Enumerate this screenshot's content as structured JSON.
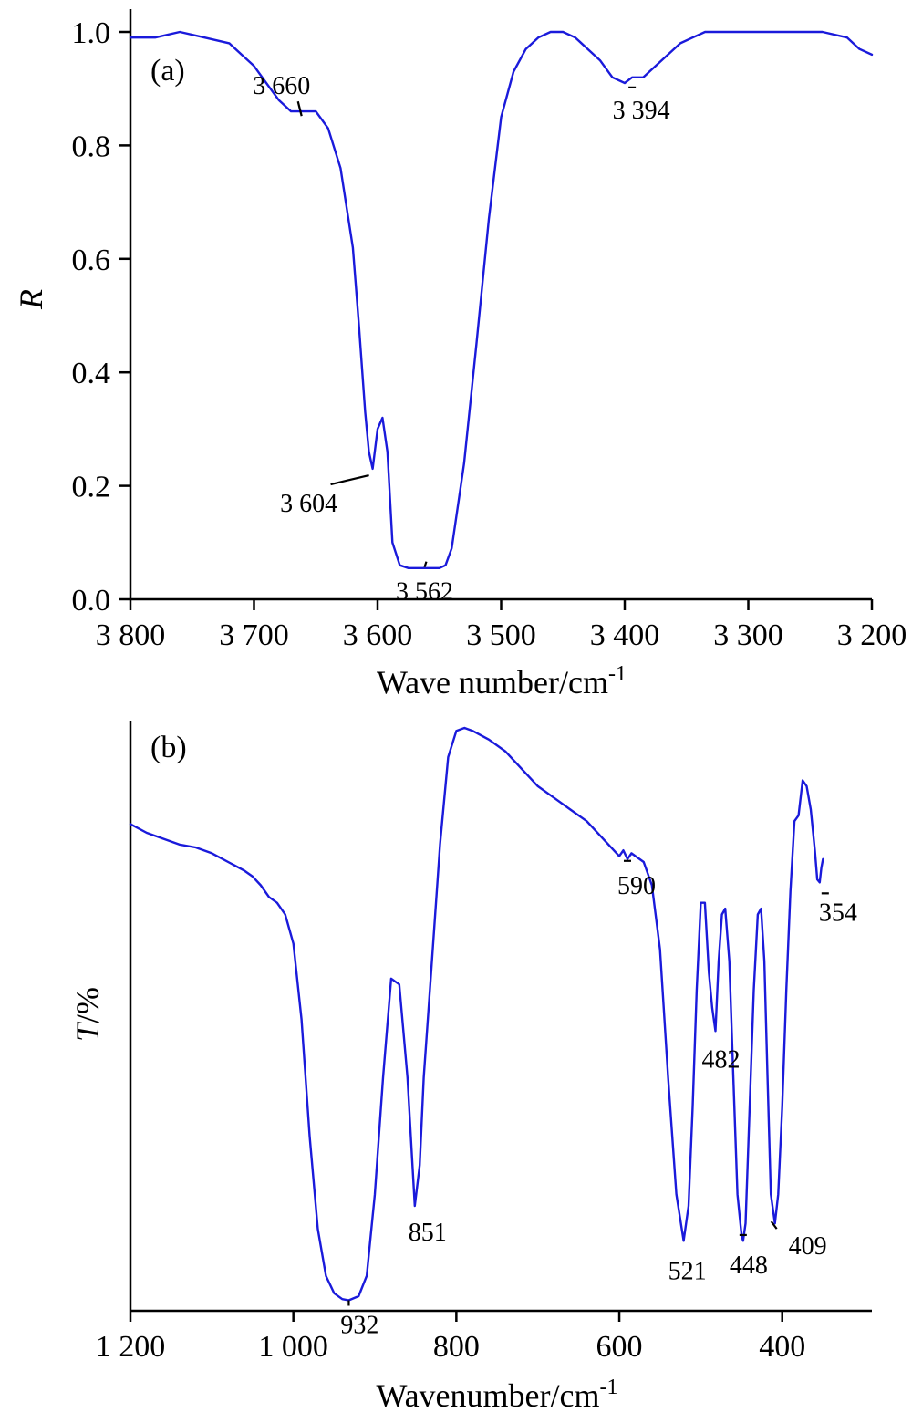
{
  "colors": {
    "series": "#1a1adb",
    "axis": "#000000",
    "background": "#ffffff"
  },
  "chart_data": [
    {
      "type": "line",
      "panel_label": "(a)",
      "xlabel": "Wave number/cm",
      "xlabel_sup": "-1",
      "ylabel": "R",
      "xlim": [
        3800,
        3200
      ],
      "ylim": [
        0,
        1.0
      ],
      "x_ticks": [
        3800,
        3700,
        3600,
        3500,
        3400,
        3300,
        3200
      ],
      "x_tick_labels": [
        "3 800",
        "3 700",
        "3 600",
        "3 500",
        "3 400",
        "3 300",
        "3 200"
      ],
      "y_ticks": [
        0.0,
        0.2,
        0.4,
        0.6,
        0.8,
        1.0
      ],
      "y_tick_labels": [
        "0.0",
        "0.2",
        "0.4",
        "0.6",
        "0.8",
        "1.0"
      ],
      "series": [
        {
          "x": [
            3800,
            3780,
            3760,
            3740,
            3720,
            3710,
            3700,
            3690,
            3680,
            3670,
            3660,
            3650,
            3640,
            3630,
            3620,
            3615,
            3610,
            3607,
            3604,
            3600,
            3596,
            3592,
            3588,
            3582,
            3575,
            3562,
            3550,
            3545,
            3540,
            3530,
            3520,
            3510,
            3500,
            3490,
            3480,
            3470,
            3460,
            3450,
            3440,
            3430,
            3420,
            3410,
            3400,
            3394,
            3385,
            3375,
            3365,
            3355,
            3345,
            3335,
            3320,
            3300,
            3280,
            3260,
            3240,
            3220,
            3210,
            3200
          ],
          "y": [
            0.99,
            0.99,
            1.0,
            0.99,
            0.98,
            0.96,
            0.94,
            0.91,
            0.88,
            0.86,
            0.86,
            0.86,
            0.83,
            0.76,
            0.62,
            0.48,
            0.33,
            0.26,
            0.23,
            0.3,
            0.32,
            0.26,
            0.1,
            0.06,
            0.055,
            0.055,
            0.055,
            0.06,
            0.09,
            0.24,
            0.45,
            0.67,
            0.85,
            0.93,
            0.97,
            0.99,
            1.0,
            1.0,
            0.99,
            0.97,
            0.95,
            0.92,
            0.91,
            0.92,
            0.92,
            0.94,
            0.96,
            0.98,
            0.99,
            1.0,
            1.0,
            1.0,
            1.0,
            1.0,
            1.0,
            0.99,
            0.97,
            0.96
          ]
        }
      ],
      "annotations": [
        {
          "text": "3 660",
          "x": 3660,
          "y": 0.855
        },
        {
          "text": "3 604",
          "x": 3604,
          "y": 0.225
        },
        {
          "text": "3 562",
          "x": 3562,
          "y": 0.06
        },
        {
          "text": "3 394",
          "x": 3394,
          "y": 0.915
        }
      ]
    },
    {
      "type": "line",
      "panel_label": "(b)",
      "xlabel": "Wavenumber/cm",
      "xlabel_sup": "-1",
      "ylabel": "T/%",
      "xlim": [
        1200,
        290
      ],
      "ylim": [
        0,
        100
      ],
      "x_ticks": [
        1200,
        1000,
        800,
        600,
        400
      ],
      "x_tick_labels": [
        "1 200",
        "1 000",
        "800",
        "600",
        "400"
      ],
      "series": [
        {
          "x": [
            1200,
            1180,
            1160,
            1140,
            1120,
            1100,
            1080,
            1060,
            1050,
            1040,
            1030,
            1020,
            1010,
            1000,
            990,
            980,
            970,
            960,
            950,
            940,
            932,
            920,
            910,
            900,
            890,
            880,
            870,
            860,
            851,
            845,
            840,
            830,
            820,
            810,
            800,
            790,
            780,
            760,
            740,
            720,
            700,
            680,
            660,
            640,
            620,
            600,
            595,
            590,
            585,
            580,
            570,
            560,
            550,
            540,
            530,
            521,
            515,
            510,
            505,
            500,
            495,
            490,
            486,
            482,
            478,
            474,
            470,
            465,
            460,
            455,
            450,
            448,
            445,
            440,
            435,
            430,
            426,
            422,
            418,
            414,
            409,
            405,
            400,
            395,
            390,
            385,
            380,
            375,
            370,
            365,
            360,
            357,
            354,
            352,
            350
          ],
          "y": [
            83.5,
            82,
            81,
            80,
            79.5,
            78.5,
            77,
            75.5,
            74.5,
            73,
            71,
            70,
            68,
            63,
            50,
            30,
            14,
            6,
            3,
            2,
            1.8,
            2.5,
            6,
            20,
            40,
            57,
            56,
            40,
            18,
            25,
            40,
            60,
            80,
            95,
            99.5,
            100,
            99.5,
            98,
            96,
            93,
            90,
            88,
            86,
            84,
            81,
            78,
            79,
            77.5,
            78.5,
            78,
            77,
            73,
            62,
            40,
            20,
            12,
            18,
            35,
            55,
            70,
            70,
            58,
            52,
            48,
            60,
            68,
            69,
            60,
            40,
            20,
            13,
            12,
            15,
            35,
            55,
            68,
            69,
            60,
            40,
            20,
            15,
            20,
            35,
            55,
            72,
            84,
            85,
            91,
            90,
            86,
            79,
            74,
            73.5,
            76,
            77.5
          ]
        }
      ],
      "annotations": [
        {
          "text": "932",
          "x": 932,
          "y": 1.8
        },
        {
          "text": "851",
          "x": 851,
          "y": 18
        },
        {
          "text": "590",
          "x": 590,
          "y": 77.5
        },
        {
          "text": "521",
          "x": 521,
          "y": 12
        },
        {
          "text": "482",
          "x": 482,
          "y": 48
        },
        {
          "text": "448",
          "x": 448,
          "y": 13
        },
        {
          "text": "409",
          "x": 409,
          "y": 15
        },
        {
          "text": "354",
          "x": 354,
          "y": 73.5
        }
      ]
    }
  ]
}
